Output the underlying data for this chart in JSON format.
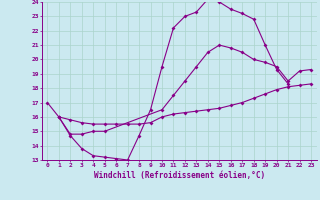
{
  "xlabel": "Windchill (Refroidissement éolien,°C)",
  "bg_color": "#cbe9f0",
  "grid_color": "#aad4cc",
  "line_color": "#880088",
  "xmin": 0,
  "xmax": 23,
  "ymin": 13,
  "ymax": 24,
  "yticks": [
    13,
    14,
    15,
    16,
    17,
    18,
    19,
    20,
    21,
    22,
    23,
    24
  ],
  "xticks": [
    0,
    1,
    2,
    3,
    4,
    5,
    6,
    7,
    8,
    9,
    10,
    11,
    12,
    13,
    14,
    15,
    16,
    17,
    18,
    19,
    20,
    21,
    22,
    23
  ],
  "line1_x": [
    0,
    1,
    2,
    3,
    4,
    5,
    6,
    7,
    8,
    9,
    10,
    11,
    12,
    13,
    14,
    15,
    16,
    17,
    18,
    19,
    20,
    21
  ],
  "line1_y": [
    17.0,
    16.0,
    14.7,
    13.8,
    13.3,
    13.2,
    13.1,
    13.0,
    14.7,
    16.5,
    19.5,
    22.2,
    23.0,
    23.3,
    24.2,
    24.0,
    23.5,
    23.2,
    22.8,
    21.0,
    19.3,
    18.3
  ],
  "line2_x": [
    1,
    2,
    3,
    4,
    5,
    6,
    7,
    8,
    9,
    10,
    11,
    12,
    13,
    14,
    15,
    16,
    17,
    18,
    19,
    20,
    21,
    22,
    23
  ],
  "line2_y": [
    16.0,
    15.8,
    15.6,
    15.5,
    15.5,
    15.5,
    15.5,
    15.5,
    15.6,
    16.0,
    16.2,
    16.3,
    16.4,
    16.5,
    16.6,
    16.8,
    17.0,
    17.3,
    17.6,
    17.9,
    18.1,
    18.2,
    18.3
  ],
  "line3_x": [
    1,
    2,
    3,
    4,
    5,
    10,
    11,
    12,
    13,
    14,
    15,
    16,
    17,
    18,
    19,
    20,
    21,
    22,
    23
  ],
  "line3_y": [
    16.0,
    14.8,
    14.8,
    15.0,
    15.0,
    16.5,
    17.5,
    18.5,
    19.5,
    20.5,
    21.0,
    20.8,
    20.5,
    20.0,
    19.8,
    19.5,
    18.5,
    19.2,
    19.3
  ]
}
